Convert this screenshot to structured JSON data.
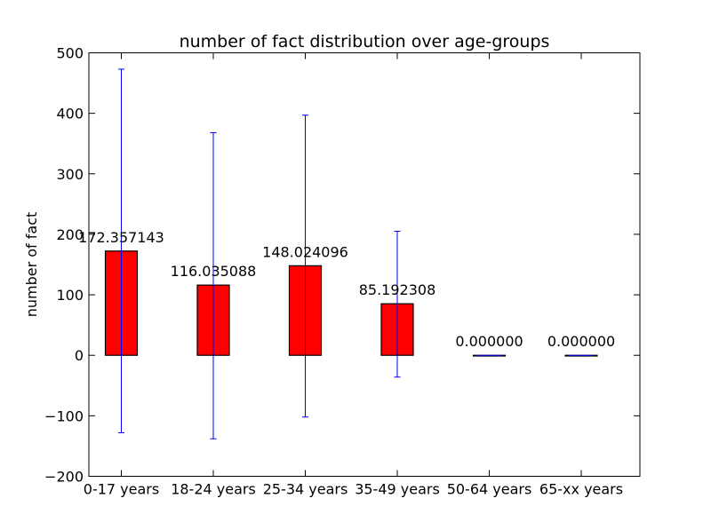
{
  "chart_data": {
    "type": "bar",
    "title": "number of fact distribution over age-groups",
    "xlabel": "",
    "ylabel": "number of fact",
    "ylim": [
      -200,
      500
    ],
    "yticks": [
      -200,
      -100,
      0,
      100,
      200,
      300,
      400,
      500
    ],
    "ytick_labels": [
      "−200",
      "−100",
      "0",
      "100",
      "200",
      "300",
      "400",
      "500"
    ],
    "grid": false,
    "categories": [
      "0-17 years",
      "18-24 years",
      "25-34 years",
      "35-49 years",
      "50-64 years",
      "65-xx years"
    ],
    "values": [
      172.357143,
      116.035088,
      148.024096,
      85.192308,
      0.0,
      0.0
    ],
    "value_labels": [
      "172.357143",
      "116.035088",
      "148.024096",
      "85.192308",
      "0.000000",
      "0.000000"
    ],
    "error_lower": [
      -128,
      -138,
      -102,
      -36,
      0,
      0
    ],
    "error_upper": [
      473,
      368,
      397,
      205,
      0,
      0
    ],
    "colors": {
      "bar": "#ff0000",
      "bar_edge": "#000000",
      "error": "#0000ff"
    }
  }
}
